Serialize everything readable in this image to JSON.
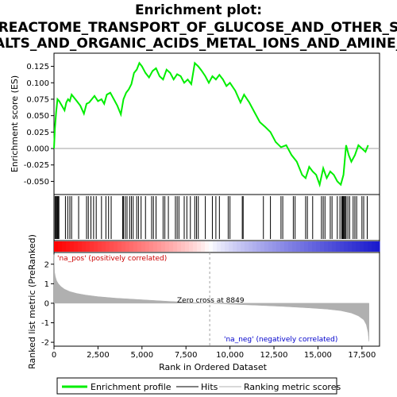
{
  "colors": {
    "es_line": "#00ee00",
    "hits": "#000000",
    "metric_fill": "#b0b0b0",
    "pos_red": "#e00000",
    "neg_blue": "#1a1acd",
    "pos_label": "#cc0000",
    "neg_label": "#0000cc",
    "zero_line": "#a0a0a0"
  },
  "title": {
    "line1": "Enrichment plot:",
    "line2": "REACTOME_TRANSPORT_OF_GLUCOSE_AND_OTHER_S",
    "line3": "ALTS_AND_ORGANIC_ACIDS_METAL_IONS_AND_AMINE_"
  },
  "legend": {
    "items": [
      {
        "label": "Enrichment profile",
        "color": "#00ee00",
        "style": "thick-line"
      },
      {
        "label": "Hits",
        "color": "#000000",
        "style": "line"
      },
      {
        "label": "Ranking metric scores",
        "color": "#b0b0b0",
        "style": "line"
      }
    ]
  },
  "chart_data": [
    {
      "type": "line",
      "name": "enrichment-profile",
      "ylabel": "Enrichment score (ES)",
      "xlim": [
        0,
        18500
      ],
      "ylim": [
        -0.07,
        0.145
      ],
      "yticks": [
        -0.05,
        -0.025,
        0.0,
        0.025,
        0.05,
        0.075,
        0.1,
        0.125
      ],
      "ytick_labels": [
        "-0.050",
        "-0.025",
        "0.000",
        "0.025",
        "0.050",
        "0.075",
        "0.100",
        "0.125"
      ],
      "grid": false,
      "x": [
        0,
        50,
        120,
        200,
        300,
        450,
        600,
        700,
        800,
        900,
        1000,
        1150,
        1300,
        1500,
        1700,
        1850,
        2000,
        2150,
        2300,
        2500,
        2700,
        2850,
        3000,
        3200,
        3400,
        3600,
        3800,
        3950,
        4100,
        4250,
        4400,
        4550,
        4700,
        4850,
        5000,
        5200,
        5400,
        5600,
        5800,
        6000,
        6200,
        6400,
        6600,
        6800,
        7000,
        7200,
        7400,
        7600,
        7800,
        8000,
        8200,
        8400,
        8600,
        8800,
        9000,
        9200,
        9400,
        9600,
        9800,
        10000,
        10300,
        10600,
        10800,
        11100,
        11400,
        11700,
        12000,
        12300,
        12600,
        12900,
        13200,
        13500,
        13800,
        14100,
        14300,
        14500,
        14700,
        14900,
        15100,
        15300,
        15500,
        15700,
        15900,
        16100,
        16300,
        16450,
        16600,
        16750,
        16900,
        17100,
        17300,
        17500,
        17700,
        17850
      ],
      "y": [
        0.0,
        0.03,
        0.055,
        0.075,
        0.072,
        0.065,
        0.058,
        0.07,
        0.075,
        0.072,
        0.082,
        0.077,
        0.072,
        0.065,
        0.053,
        0.068,
        0.07,
        0.075,
        0.08,
        0.072,
        0.075,
        0.068,
        0.082,
        0.085,
        0.075,
        0.065,
        0.052,
        0.075,
        0.085,
        0.09,
        0.098,
        0.115,
        0.12,
        0.13,
        0.125,
        0.115,
        0.108,
        0.118,
        0.122,
        0.11,
        0.105,
        0.12,
        0.115,
        0.105,
        0.113,
        0.11,
        0.1,
        0.105,
        0.098,
        0.13,
        0.125,
        0.118,
        0.11,
        0.1,
        0.11,
        0.105,
        0.112,
        0.105,
        0.095,
        0.1,
        0.088,
        0.07,
        0.082,
        0.07,
        0.055,
        0.04,
        0.033,
        0.025,
        0.01,
        0.002,
        0.005,
        -0.01,
        -0.02,
        -0.04,
        -0.045,
        -0.028,
        -0.035,
        -0.04,
        -0.055,
        -0.03,
        -0.045,
        -0.035,
        -0.04,
        -0.05,
        -0.055,
        -0.04,
        0.005,
        -0.01,
        -0.02,
        -0.01,
        0.005,
        0.0,
        -0.005,
        0.005
      ]
    },
    {
      "type": "scatter",
      "name": "hits",
      "note": "gene set member positions in ranked list",
      "x": [
        60,
        110,
        150,
        200,
        240,
        280,
        650,
        780,
        900,
        1000,
        1400,
        1850,
        1950,
        2100,
        2250,
        2400,
        2700,
        2950,
        3100,
        3250,
        3900,
        3950,
        4050,
        4150,
        4300,
        4400,
        4500,
        4700,
        4800,
        4950,
        5200,
        5550,
        5650,
        5800,
        6200,
        6300,
        6500,
        6900,
        7000,
        7100,
        7400,
        7550,
        7750,
        8000,
        8100,
        8200,
        8600,
        9000,
        9200,
        9400,
        9900,
        10000,
        10700,
        10750,
        11900,
        12300,
        12900,
        13000,
        13600,
        13700,
        14300,
        14400,
        14700,
        15200,
        15300,
        15400,
        15700,
        15800,
        16100,
        16250,
        16350,
        16400,
        16450,
        16500,
        16550,
        16600,
        16700,
        16800,
        17000,
        17100,
        17200,
        17500,
        17600,
        17800
      ]
    },
    {
      "type": "area",
      "name": "ranked-list-metric",
      "xlabel": "Rank in Ordered Dataset",
      "ylabel": "Ranked list metric (PreRanked)",
      "xlim": [
        0,
        18500
      ],
      "ylim": [
        -2.2,
        2.6
      ],
      "xticks": [
        0,
        2500,
        5000,
        7500,
        10000,
        12500,
        15000,
        17500
      ],
      "xtick_labels": [
        "0",
        "2,500",
        "5,000",
        "7,500",
        "10,000",
        "12,500",
        "15,000",
        "17,500"
      ],
      "yticks": [
        -2,
        -1,
        0,
        1,
        2
      ],
      "ytick_labels": [
        "-2",
        "-1",
        "0",
        "1",
        "2"
      ],
      "x": [
        0,
        30,
        80,
        150,
        250,
        400,
        600,
        900,
        1300,
        1800,
        2500,
        3500,
        5000,
        6500,
        8000,
        8849,
        10000,
        11500,
        13000,
        14500,
        15500,
        16300,
        16900,
        17300,
        17600,
        17750,
        17850,
        17900
      ],
      "y": [
        2.5,
        1.6,
        1.35,
        1.15,
        1.0,
        0.85,
        0.72,
        0.6,
        0.5,
        0.42,
        0.34,
        0.26,
        0.18,
        0.1,
        0.03,
        0.0,
        -0.05,
        -0.1,
        -0.16,
        -0.24,
        -0.3,
        -0.38,
        -0.5,
        -0.65,
        -0.85,
        -1.1,
        -1.5,
        -1.95
      ],
      "zero_cross_label": "Zero cross at 8849",
      "zero_cross_x": 8849,
      "pos_label": "'na_pos' (positively correlated)",
      "neg_label": "'na_neg' (negatively correlated)"
    }
  ]
}
